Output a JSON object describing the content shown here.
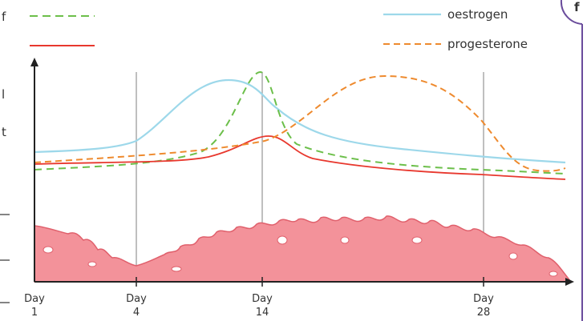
{
  "legend": {
    "items": [
      "oestrogen",
      "progesterone"
    ]
  },
  "days": [
    {
      "word": "Day",
      "number": "1"
    },
    {
      "word": "Day",
      "number": "4"
    },
    {
      "word": "Day",
      "number": "14"
    },
    {
      "word": "Day",
      "number": "28"
    }
  ],
  "margin_fragments": [
    "f",
    "l",
    "t"
  ],
  "corner_label": "f"
}
